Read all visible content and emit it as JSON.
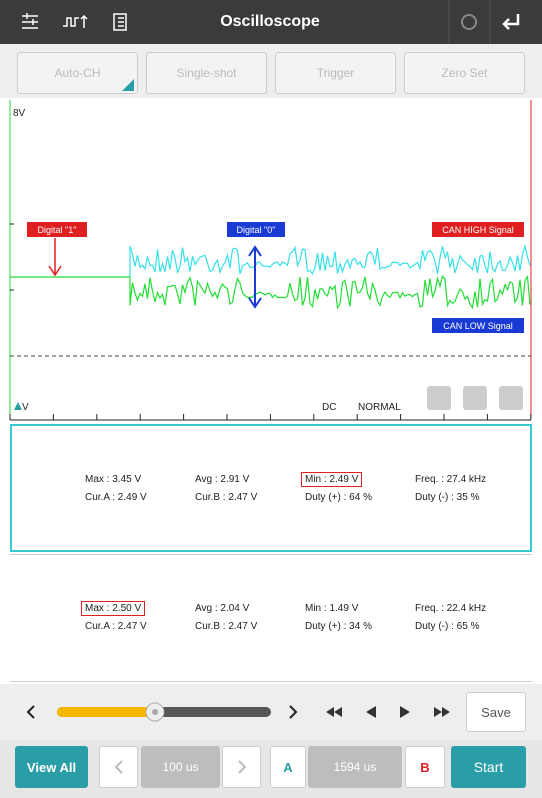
{
  "toolbar": {
    "title": "Oscilloscope"
  },
  "buttons": [
    "Auto-CH",
    "Single-shot",
    "Trigger",
    "Zero Set"
  ],
  "scope": {
    "top_label": "8V",
    "bottom_label": "V",
    "coupling": "DC",
    "mode": "NORMAL",
    "annotations": [
      "Digital \"1\"",
      "Digital \"0\"",
      "CAN HIGH Signal",
      "CAN LOW Signal"
    ]
  },
  "panels": [
    {
      "rows": [
        [
          "Max : 3.45 V",
          "Avg : 2.91 V",
          "Min : 2.49 V",
          "Freq. : 27.4 kHz"
        ],
        [
          "Cur.A : 2.49 V",
          "Cur.B : 2.47 V",
          "Duty (+) : 64 %",
          "Duty (-) : 35 %"
        ]
      ]
    },
    {
      "rows": [
        [
          "Max : 2.50 V",
          "Avg : 2.04 V",
          "Min : 1.49 V",
          "Freq. : 22.4 kHz"
        ],
        [
          "Cur.A : 2.47 V",
          "Cur.B : 2.47 V",
          "Duty (+) : 34 %",
          "Duty (-) : 65 %"
        ]
      ]
    }
  ],
  "controls": {
    "save": "Save"
  },
  "bottom_bar": {
    "view_all": "View All",
    "time_div": "100 us",
    "cursor_a": "A",
    "cursor_pos": "1594 us",
    "cursor_b": "B",
    "start": "Start"
  }
}
